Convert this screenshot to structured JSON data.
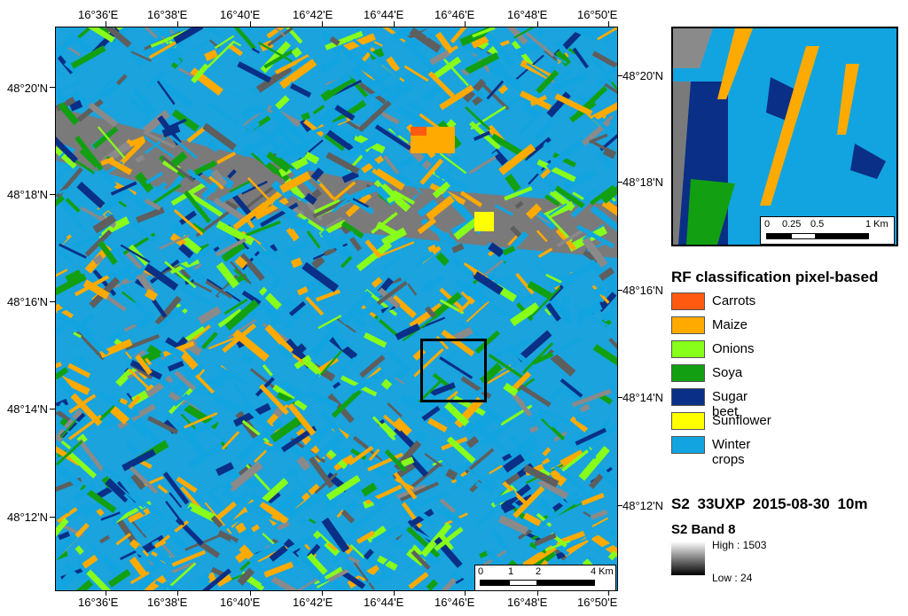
{
  "map": {
    "lon_labels": [
      "16°36'E",
      "16°38'E",
      "16°40'E",
      "16°42'E",
      "16°44'E",
      "16°46'E",
      "16°48'E",
      "16°50'E"
    ],
    "lat_labels_left": [
      "48°20'N",
      "48°18'N",
      "48°16'N",
      "48°14'N",
      "48°12'N"
    ],
    "lat_labels_right": [
      "48°20'N",
      "48°18'N",
      "48°16'N",
      "48°14'N",
      "48°12'N"
    ],
    "scalebar": {
      "labels": [
        "0",
        "1",
        "2",
        "4 Km"
      ]
    }
  },
  "inset": {
    "scalebar": {
      "labels": [
        "0",
        "0.25",
        "0.5",
        "1 Km"
      ]
    }
  },
  "legend": {
    "title": "RF classification pixel-based",
    "items": [
      {
        "label": "Carrots",
        "color": "#ff5a10"
      },
      {
        "label": "Maize",
        "color": "#ffaa00"
      },
      {
        "label": "Onions",
        "color": "#88ff1a"
      },
      {
        "label": "Soya",
        "color": "#12a012"
      },
      {
        "label": "Sugar beet",
        "color": "#0a2f86"
      },
      {
        "label": "Sunflower",
        "color": "#ffff00"
      },
      {
        "label": "Winter crops",
        "color": "#12a4e0"
      }
    ]
  },
  "meta": {
    "line": "S2  33UXP  2015-08-30  10m",
    "band_title": "S2 Band 8",
    "high_label": "High : 1503",
    "low_label": "Low : 24"
  }
}
